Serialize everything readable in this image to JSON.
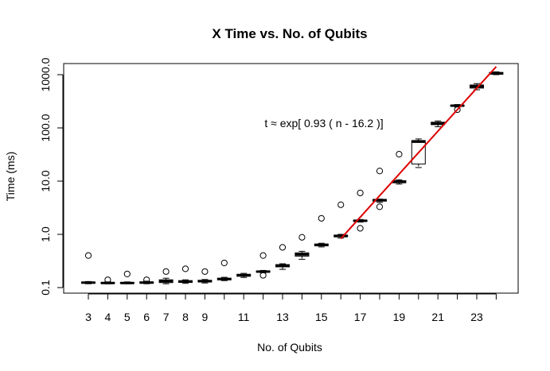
{
  "chart_data": {
    "type": "boxplot",
    "title": "X Time vs. No. of Qubits",
    "xlabel": "No. of Qubits",
    "ylabel": "Time (ms)",
    "y_scale": "log10",
    "ylim": [
      0.1,
      1000
    ],
    "y_ticks": [
      {
        "value": 0.1,
        "label": "0.1"
      },
      {
        "value": 1,
        "label": "1.0"
      },
      {
        "value": 10,
        "label": "10.0"
      },
      {
        "value": 100,
        "label": "100.0"
      },
      {
        "value": 1000,
        "label": "1000.0"
      }
    ],
    "x_ticks": [
      {
        "value": 3,
        "label": "3"
      },
      {
        "value": 4,
        "label": "4"
      },
      {
        "value": 5,
        "label": "5"
      },
      {
        "value": 6,
        "label": "6"
      },
      {
        "value": 7,
        "label": "7"
      },
      {
        "value": 8,
        "label": "8"
      },
      {
        "value": 9,
        "label": "9"
      },
      {
        "value": 10,
        "label": ""
      },
      {
        "value": 11,
        "label": "11"
      },
      {
        "value": 12,
        "label": ""
      },
      {
        "value": 13,
        "label": "13"
      },
      {
        "value": 14,
        "label": ""
      },
      {
        "value": 15,
        "label": "15"
      },
      {
        "value": 16,
        "label": ""
      },
      {
        "value": 17,
        "label": "17"
      },
      {
        "value": 18,
        "label": ""
      },
      {
        "value": 19,
        "label": "19"
      },
      {
        "value": 20,
        "label": ""
      },
      {
        "value": 21,
        "label": "21"
      },
      {
        "value": 22,
        "label": ""
      },
      {
        "value": 23,
        "label": "23"
      },
      {
        "value": 24,
        "label": ""
      }
    ],
    "boxes": [
      {
        "x": 3,
        "wlo": 0.118,
        "q1": 0.121,
        "med": 0.124,
        "q3": 0.127,
        "whi": 0.13,
        "outliers": [
          0.4
        ]
      },
      {
        "x": 4,
        "wlo": 0.118,
        "q1": 0.12,
        "med": 0.122,
        "q3": 0.125,
        "whi": 0.128,
        "outliers": [
          0.14
        ]
      },
      {
        "x": 5,
        "wlo": 0.118,
        "q1": 0.12,
        "med": 0.122,
        "q3": 0.125,
        "whi": 0.128,
        "outliers": [
          0.18
        ]
      },
      {
        "x": 6,
        "wlo": 0.118,
        "q1": 0.121,
        "med": 0.124,
        "q3": 0.128,
        "whi": 0.132,
        "outliers": [
          0.14
        ]
      },
      {
        "x": 7,
        "wlo": 0.118,
        "q1": 0.124,
        "med": 0.132,
        "q3": 0.14,
        "whi": 0.15,
        "outliers": [
          0.2
        ]
      },
      {
        "x": 8,
        "wlo": 0.12,
        "q1": 0.125,
        "med": 0.13,
        "q3": 0.135,
        "whi": 0.14,
        "outliers": [
          0.225
        ]
      },
      {
        "x": 9,
        "wlo": 0.122,
        "q1": 0.127,
        "med": 0.132,
        "q3": 0.137,
        "whi": 0.142,
        "outliers": [
          0.2
        ]
      },
      {
        "x": 10,
        "wlo": 0.135,
        "q1": 0.14,
        "med": 0.145,
        "q3": 0.15,
        "whi": 0.156,
        "outliers": [
          0.29
        ]
      },
      {
        "x": 11,
        "wlo": 0.155,
        "q1": 0.163,
        "med": 0.17,
        "q3": 0.178,
        "whi": 0.185,
        "outliers": []
      },
      {
        "x": 12,
        "wlo": 0.19,
        "q1": 0.195,
        "med": 0.2,
        "q3": 0.205,
        "whi": 0.21,
        "outliers": [
          0.4,
          0.17
        ]
      },
      {
        "x": 13,
        "wlo": 0.22,
        "q1": 0.245,
        "med": 0.26,
        "q3": 0.27,
        "whi": 0.28,
        "outliers": [
          0.57
        ]
      },
      {
        "x": 14,
        "wlo": 0.34,
        "q1": 0.39,
        "med": 0.42,
        "q3": 0.45,
        "whi": 0.48,
        "outliers": [
          0.88
        ]
      },
      {
        "x": 15,
        "wlo": 0.58,
        "q1": 0.61,
        "med": 0.63,
        "q3": 0.66,
        "whi": 0.68,
        "outliers": [
          2.0
        ]
      },
      {
        "x": 16,
        "wlo": 0.85,
        "q1": 0.9,
        "med": 0.93,
        "q3": 0.97,
        "whi": 1.0,
        "outliers": [
          3.6
        ]
      },
      {
        "x": 17,
        "wlo": 1.7,
        "q1": 1.75,
        "med": 1.8,
        "q3": 1.85,
        "whi": 1.9,
        "outliers": [
          6.0,
          1.3
        ]
      },
      {
        "x": 18,
        "wlo": 4.0,
        "q1": 4.2,
        "med": 4.4,
        "q3": 4.5,
        "whi": 4.6,
        "outliers": [
          15.5,
          3.3
        ]
      },
      {
        "x": 19,
        "wlo": 8.8,
        "q1": 9.3,
        "med": 9.8,
        "q3": 10.2,
        "whi": 10.6,
        "outliers": [
          32
        ]
      },
      {
        "x": 20,
        "wlo": 18,
        "q1": 21,
        "med": 55,
        "q3": 58,
        "whi": 62,
        "outliers": []
      },
      {
        "x": 21,
        "wlo": 105,
        "q1": 115,
        "med": 122,
        "q3": 128,
        "whi": 135,
        "outliers": []
      },
      {
        "x": 22,
        "wlo": 248,
        "q1": 255,
        "med": 262,
        "q3": 268,
        "whi": 275,
        "outliers": [
          220
        ]
      },
      {
        "x": 23,
        "wlo": 520,
        "q1": 560,
        "med": 600,
        "q3": 640,
        "whi": 680,
        "outliers": []
      },
      {
        "x": 24,
        "wlo": 1000,
        "q1": 1020,
        "med": 1060,
        "q3": 1100,
        "whi": 1130,
        "outliers": []
      }
    ],
    "fit_line": {
      "color": "#dd0000",
      "label": "t ≈ exp[ 0.93 ( n -  16.2 )]",
      "rate": 0.93,
      "offset": 16.2,
      "x_range": [
        16,
        24.0
      ]
    }
  }
}
